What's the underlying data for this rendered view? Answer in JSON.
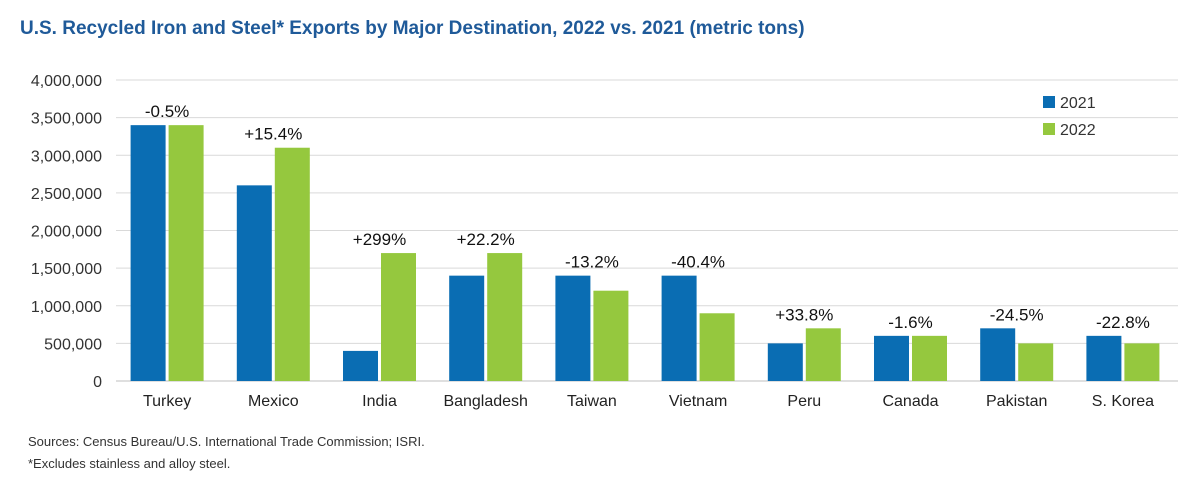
{
  "title": "U.S. Recycled Iron and Steel* Exports by Major Destination, 2022 vs. 2021 (metric tons)",
  "footer": {
    "sources": "Sources: Census Bureau/U.S. International Trade Commission; ISRI.",
    "note": "*Excludes stainless and alloy steel."
  },
  "colors": {
    "s2021": "#0a6db3",
    "s2022": "#95c83e",
    "grid": "#d9d9d9",
    "axis": "#bfbfbf"
  },
  "chart_data": {
    "type": "bar",
    "categories": [
      "Turkey",
      "Mexico",
      "India",
      "Bangladesh",
      "Taiwan",
      "Vietnam",
      "Peru",
      "Canada",
      "Pakistan",
      "S. Korea"
    ],
    "series": [
      {
        "name": "2021",
        "values": [
          3400000,
          2600000,
          400000,
          1400000,
          1400000,
          1400000,
          500000,
          600000,
          700000,
          600000
        ]
      },
      {
        "name": "2022",
        "values": [
          3400000,
          3100000,
          1700000,
          1700000,
          1200000,
          900000,
          700000,
          600000,
          500000,
          500000
        ]
      }
    ],
    "annotations": [
      "-0.5%",
      "+15.4%",
      "+299%",
      "+22.2%",
      "-13.2%",
      "-40.4%",
      "+33.8%",
      "-1.6%",
      "-24.5%",
      "-22.8%"
    ],
    "ylim": [
      0,
      4000000
    ],
    "yticks": [
      "0",
      "500,000",
      "1,000,000",
      "1,500,000",
      "2,000,000",
      "2,500,000",
      "3,000,000",
      "3,500,000",
      "4,000,000"
    ],
    "ytick_values": [
      0,
      500000,
      1000000,
      1500000,
      2000000,
      2500000,
      3000000,
      3500000,
      4000000
    ],
    "grid": true,
    "legend": "top-right"
  }
}
